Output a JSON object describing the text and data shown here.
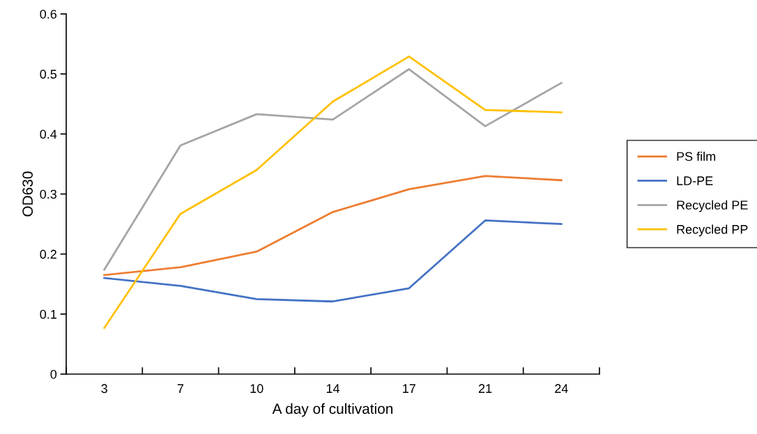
{
  "chart_data": {
    "type": "line",
    "xlabel": "A day of cultivation",
    "ylabel": "OD630",
    "categories": [
      "3",
      "7",
      "10",
      "14",
      "17",
      "21",
      "24"
    ],
    "ylim": [
      0,
      0.6
    ],
    "yticks": [
      0,
      0.1,
      0.2,
      0.3,
      0.4,
      0.5,
      0.6
    ],
    "grid": false,
    "legend": "right",
    "marker": "none",
    "line_style": "solid",
    "series": [
      {
        "name": "PS film",
        "color": "#ed7d31",
        "values": [
          0.165,
          0.178,
          0.204,
          0.27,
          0.308,
          0.33,
          0.323
        ]
      },
      {
        "name": "LD-PE",
        "color": "#4472c4",
        "values": [
          0.16,
          0.147,
          0.125,
          0.121,
          0.143,
          0.256,
          0.25
        ]
      },
      {
        "name": "Recycled PE",
        "color": "#a5a5a5",
        "values": [
          0.174,
          0.381,
          0.433,
          0.424,
          0.508,
          0.413,
          0.485
        ]
      },
      {
        "name": "Recycled PP",
        "color": "#ffc000",
        "values": [
          0.077,
          0.267,
          0.34,
          0.454,
          0.529,
          0.44,
          0.436
        ]
      }
    ]
  }
}
